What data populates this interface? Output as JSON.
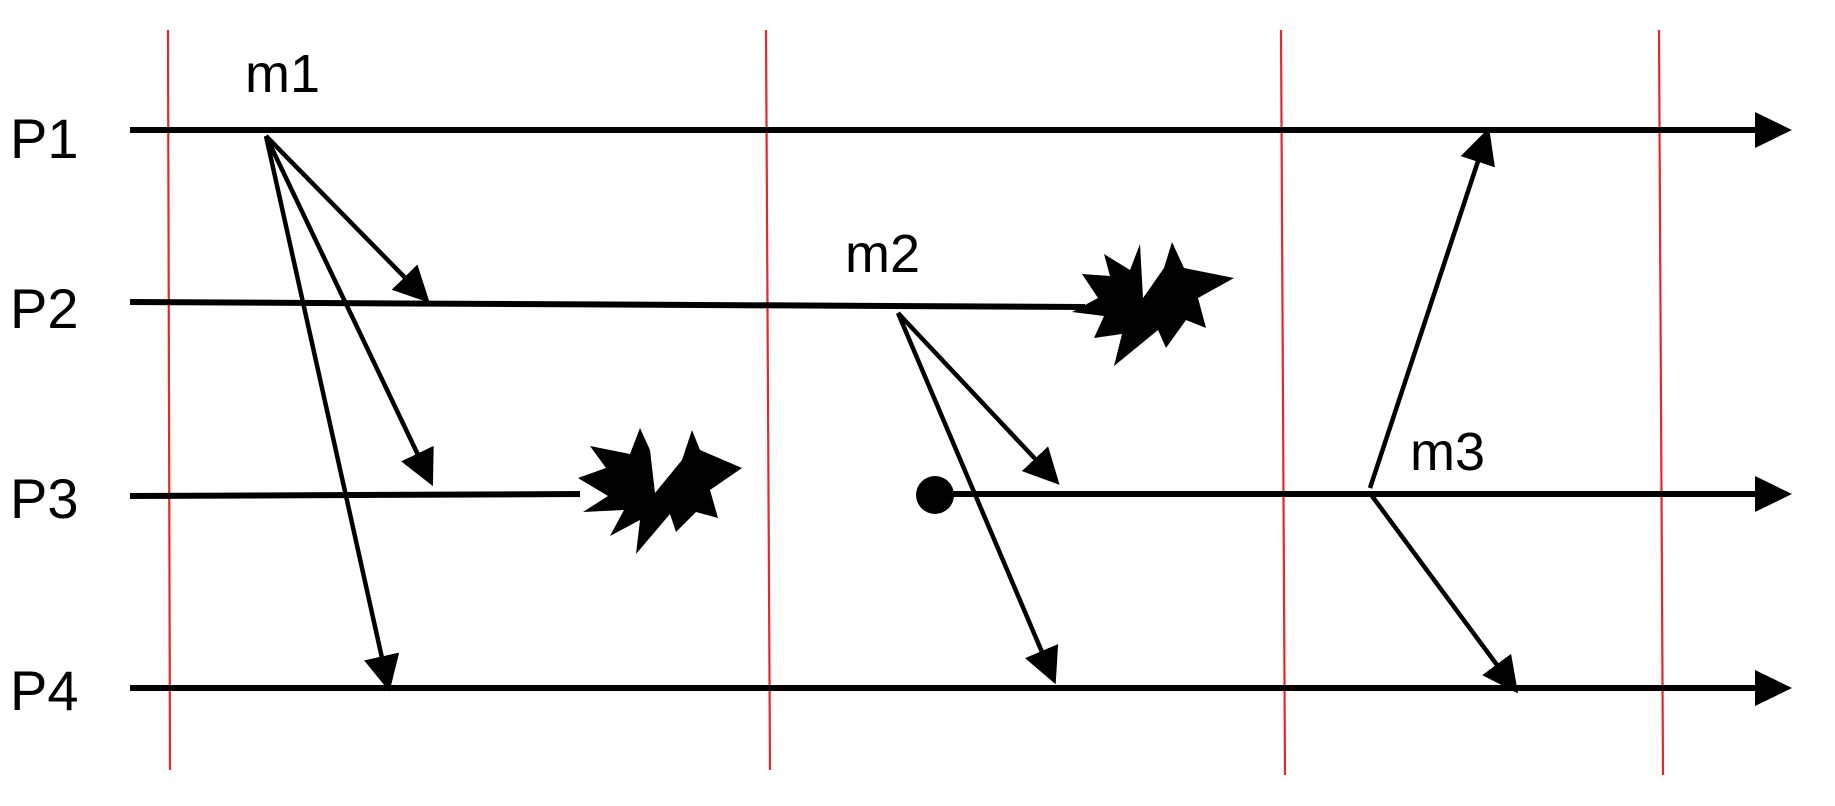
{
  "processes": [
    {
      "id": "P1",
      "label": "P1"
    },
    {
      "id": "P2",
      "label": "P2"
    },
    {
      "id": "P3",
      "label": "P3"
    },
    {
      "id": "P4",
      "label": "P4"
    }
  ],
  "messages": [
    {
      "id": "m1",
      "label": "m1",
      "sender": "P1",
      "receivers": [
        "P2",
        "P3",
        "P4"
      ]
    },
    {
      "id": "m2",
      "label": "m2",
      "sender": "P2",
      "receivers": [
        "P3",
        "P4"
      ]
    },
    {
      "id": "m3",
      "label": "m3",
      "sender": "P3",
      "receivers": [
        "P1",
        "P4"
      ]
    }
  ],
  "crashes": [
    "P3",
    "P2"
  ],
  "colors": {
    "timeline": "#000000",
    "round_boundary": "#e3282e",
    "message": "#000000"
  }
}
